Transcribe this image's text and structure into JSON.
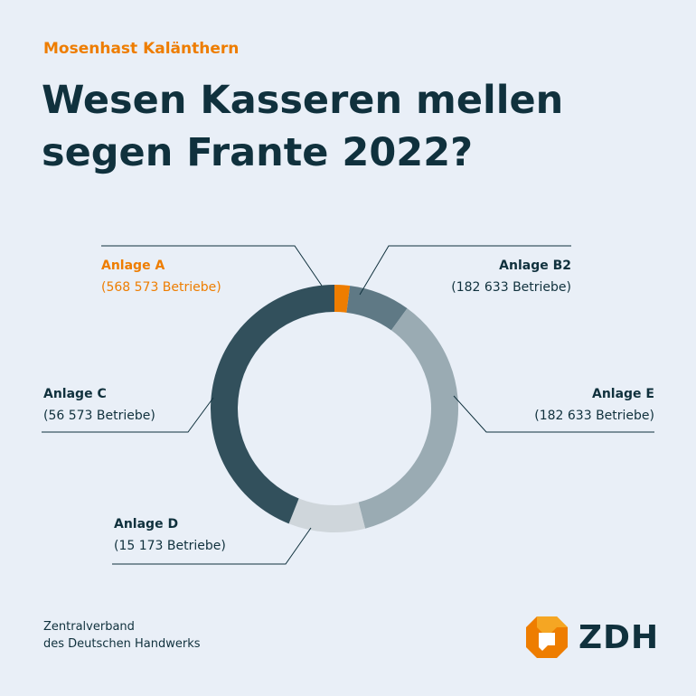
{
  "header": {
    "kicker": "Mosenhast Kalänthern",
    "title_line1": "Wesen Kasseren mellen",
    "title_line2": "segen Frante 2022?"
  },
  "chart_data": {
    "type": "pie",
    "donut": true,
    "slices": [
      {
        "name": "Anlage A",
        "value_label": "(568 573 Betriebe)",
        "share": 0.02,
        "color": "#ee7d00",
        "text_color": "#ee7d00"
      },
      {
        "name": "Anlage B2",
        "value_label": "(182 633 Betriebe)",
        "share": 0.08,
        "color": "#5f7985",
        "text_color": "#10313d"
      },
      {
        "name": "Anlage E",
        "value_label": "(182 633 Betriebe)",
        "share": 0.36,
        "color": "#9aabb3",
        "text_color": "#10313d"
      },
      {
        "name": "Anlage D",
        "value_label": "(15 173 Betriebe)",
        "share": 0.1,
        "color": "#cfd6db",
        "text_color": "#10313d"
      },
      {
        "name": "Anlage C",
        "value_label": "(56 573 Betriebe)",
        "share": 0.44,
        "color": "#32505c",
        "text_color": "#10313d"
      }
    ]
  },
  "footer": {
    "org_line1": "Zentralverband",
    "org_line2": "des Deutschen Handwerks"
  },
  "logo": {
    "text": "ZDH",
    "colors": {
      "primary": "#ee7d00",
      "secondary": "#f5a623"
    }
  }
}
